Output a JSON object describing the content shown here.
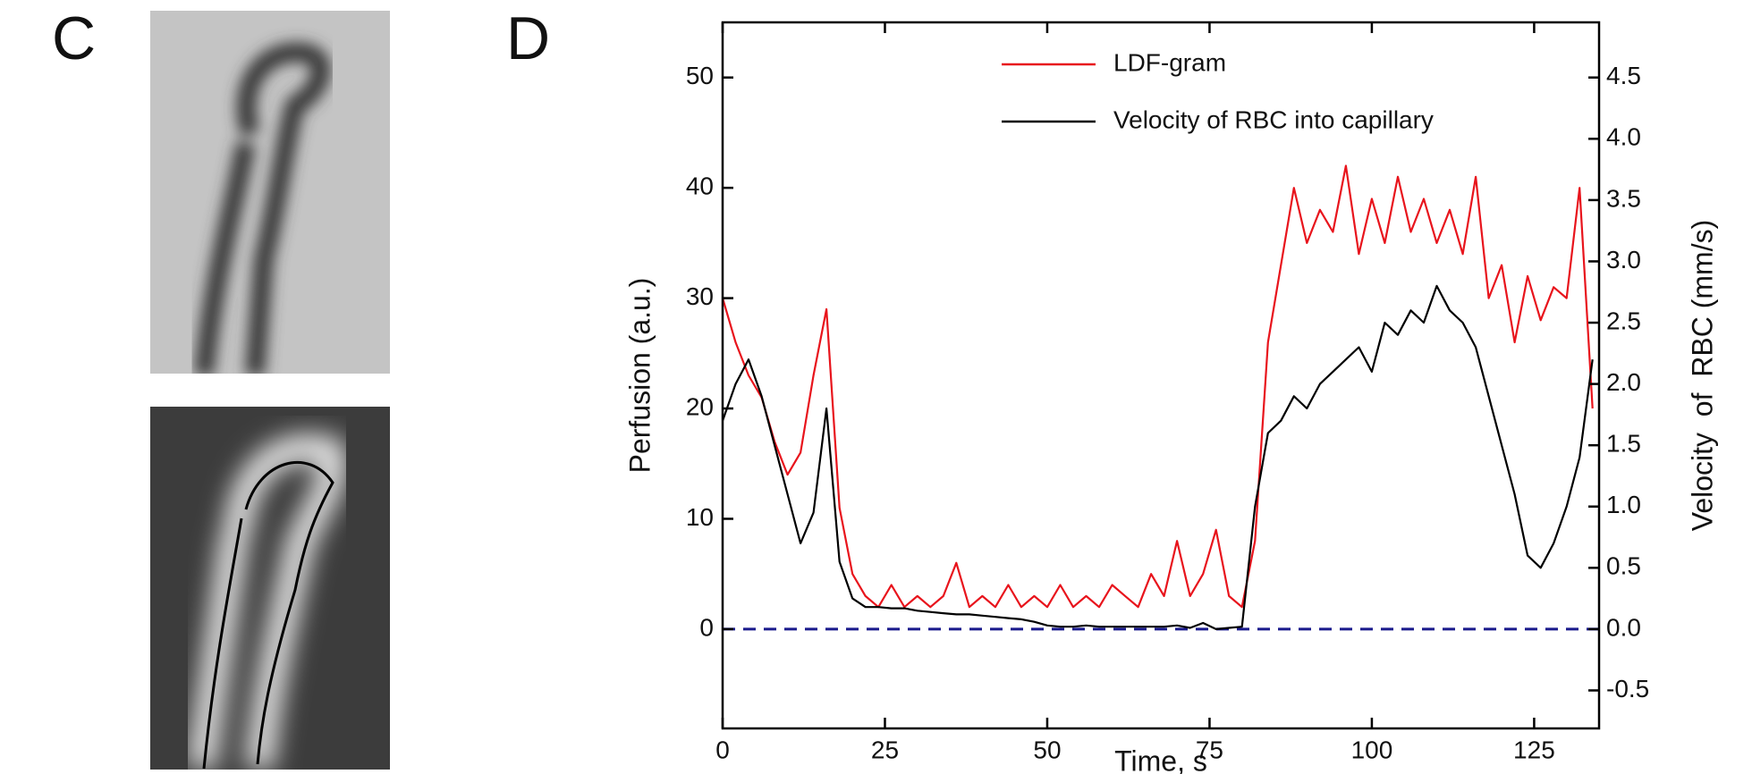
{
  "panel_labels": [
    "C",
    "D"
  ],
  "chart_data": {
    "type": "line",
    "x_label": "Time, s",
    "y_label": "Perfusion (a.u.)",
    "y2_label": "Velocity  of  RBC (mm/s)",
    "x": [
      0,
      2,
      4,
      6,
      8,
      10,
      12,
      14,
      16,
      18,
      20,
      22,
      24,
      26,
      28,
      30,
      32,
      34,
      36,
      38,
      40,
      42,
      44,
      46,
      48,
      50,
      52,
      54,
      56,
      58,
      60,
      62,
      64,
      66,
      68,
      70,
      72,
      74,
      76,
      78,
      80,
      82,
      84,
      86,
      88,
      90,
      92,
      94,
      96,
      98,
      100,
      102,
      104,
      106,
      108,
      110,
      112,
      114,
      116,
      118,
      120,
      122,
      124,
      126,
      128,
      130,
      132,
      134
    ],
    "series": [
      {
        "name": "LDF-gram",
        "color": "#e8141c",
        "values": [
          30,
          26,
          23,
          21,
          17,
          14,
          16,
          23,
          29,
          11,
          5,
          3,
          2,
          4,
          2,
          3,
          2,
          3,
          6,
          2,
          3,
          2,
          4,
          2,
          3,
          2,
          4,
          2,
          3,
          2,
          4,
          3,
          2,
          5,
          3,
          8,
          3,
          5,
          9,
          3,
          2,
          8,
          26,
          33,
          40,
          35,
          38,
          36,
          42,
          34,
          39,
          35,
          41,
          36,
          39,
          35,
          38,
          34,
          41,
          30,
          33,
          26,
          32,
          28,
          31,
          30,
          40,
          20
        ]
      },
      {
        "name": "Velocity of RBC into capillary",
        "color": "#000000",
        "axis": "y2",
        "values": [
          1.7,
          2.0,
          2.2,
          1.9,
          1.5,
          1.1,
          0.7,
          0.95,
          1.8,
          0.55,
          0.25,
          0.18,
          0.18,
          0.17,
          0.17,
          0.15,
          0.14,
          0.13,
          0.12,
          0.12,
          0.11,
          0.1,
          0.09,
          0.08,
          0.06,
          0.03,
          0.02,
          0.02,
          0.03,
          0.02,
          0.02,
          0.02,
          0.02,
          0.02,
          0.02,
          0.03,
          0.01,
          0.05,
          0,
          0.01,
          0.02,
          1.0,
          1.6,
          1.7,
          1.9,
          1.8,
          2.0,
          2.1,
          2.2,
          2.3,
          2.1,
          2.5,
          2.4,
          2.6,
          2.5,
          2.8,
          2.6,
          2.5,
          2.3,
          1.9,
          1.5,
          1.1,
          0.6,
          0.5,
          0.7,
          1.0,
          1.4,
          2.2
        ]
      }
    ],
    "xlim": [
      0,
      135
    ],
    "xticks": [
      0,
      25,
      50,
      75,
      100,
      125
    ],
    "ylim": [
      -9,
      55
    ],
    "yticks": [
      0,
      10,
      20,
      30,
      40,
      50
    ],
    "y2lim": [
      -0.81,
      4.95
    ],
    "y2ticks": [
      -0.5,
      {
        "value": 0,
        "label": "0.0"
      },
      0.5,
      {
        "value": 1,
        "label": "1.0"
      },
      1.5,
      {
        "value": 2,
        "label": "2.0"
      },
      2.5,
      {
        "value": 3,
        "label": "3.0"
      },
      3.5,
      {
        "value": 4,
        "label": "4.0"
      },
      4.5
    ],
    "reference_line": {
      "value": 0,
      "color": "#1a1a8c"
    },
    "legend": "top"
  }
}
